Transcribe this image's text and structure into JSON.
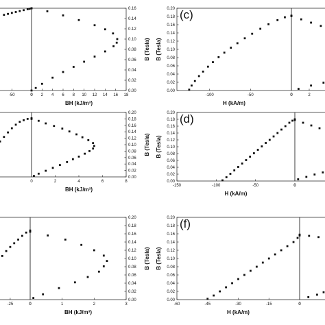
{
  "figure_type": "multi-panel demagnetization and energy product plots",
  "chart_data": [
    {
      "id": "a",
      "type": "scatter",
      "panel_label": "",
      "left_xticks": [
        "-50",
        "0"
      ],
      "right_xticks": [
        "0",
        "2",
        "4",
        "6",
        "8",
        "10",
        "12",
        "14",
        "16",
        "18"
      ],
      "right_xlabel": "BH (kJ/m³)",
      "ylabel": "B (Tesla)",
      "ylim": [
        0,
        0.16
      ],
      "yticks": [
        "0.00",
        "0.02",
        "0.04",
        "0.06",
        "0.08",
        "0.10",
        "0.12",
        "0.14",
        "0.16"
      ],
      "left_series": [
        [
          -100,
          0.1416
        ],
        [
          -85,
          0.1444
        ],
        [
          -70,
          0.1471
        ],
        [
          -60,
          0.149
        ],
        [
          -50,
          0.1509
        ],
        [
          -40,
          0.1527
        ],
        [
          -30,
          0.1545
        ],
        [
          -20,
          0.1563
        ],
        [
          -10,
          0.1581
        ],
        [
          -5,
          0.1589
        ],
        [
          0,
          0.1598
        ]
      ],
      "right_series": [
        [
          0,
          0.16
        ],
        [
          3,
          0.154
        ],
        [
          6,
          0.146
        ],
        [
          9,
          0.137
        ],
        [
          12,
          0.127
        ],
        [
          14,
          0.119
        ],
        [
          15.5,
          0.111
        ],
        [
          16.3,
          0.1
        ],
        [
          16.2,
          0.093
        ],
        [
          15.6,
          0.086
        ],
        [
          14,
          0.076
        ],
        [
          12,
          0.066
        ],
        [
          10,
          0.056
        ],
        [
          8,
          0.046
        ],
        [
          6,
          0.036
        ],
        [
          4,
          0.025
        ],
        [
          2,
          0.013
        ],
        [
          0.8,
          0.005
        ],
        [
          0,
          0
        ]
      ]
    },
    {
      "id": "b",
      "type": "scatter",
      "panel_label": "",
      "left_xticks": [],
      "right_xticks": [
        "0",
        "2",
        "4",
        "6",
        "8"
      ],
      "right_xlabel": "BH (kJ/m³)",
      "ylabel": "B (Tesla)",
      "ylim": [
        0,
        0.2
      ],
      "yticks": [
        "0.00",
        "0.02",
        "0.04",
        "0.06",
        "0.08",
        "0.10",
        "0.12",
        "0.14",
        "0.16",
        "0.18",
        "0.20"
      ],
      "left_series": [
        [
          -100,
          0.081
        ],
        [
          -90,
          0.095
        ],
        [
          -80,
          0.11
        ],
        [
          -70,
          0.124
        ],
        [
          -60,
          0.138
        ],
        [
          -50,
          0.151
        ],
        [
          -40,
          0.162
        ],
        [
          -30,
          0.171
        ],
        [
          -20,
          0.176
        ],
        [
          -10,
          0.18
        ],
        [
          0,
          0.182
        ]
      ],
      "right_series": [
        [
          0,
          0.18
        ],
        [
          0.6,
          0.174
        ],
        [
          1.2,
          0.166
        ],
        [
          1.9,
          0.158
        ],
        [
          2.6,
          0.15
        ],
        [
          3.2,
          0.141
        ],
        [
          3.8,
          0.132
        ],
        [
          4.3,
          0.123
        ],
        [
          4.8,
          0.114
        ],
        [
          5.2,
          0.105
        ],
        [
          5.3,
          0.096
        ],
        [
          5.2,
          0.088
        ],
        [
          4.9,
          0.08
        ],
        [
          4.5,
          0.072
        ],
        [
          4,
          0.063
        ],
        [
          3.5,
          0.055
        ],
        [
          3,
          0.046
        ],
        [
          2.4,
          0.037
        ],
        [
          1.8,
          0.028
        ],
        [
          1.2,
          0.019
        ],
        [
          0.6,
          0.01
        ],
        [
          0.2,
          0.003
        ]
      ]
    },
    {
      "id": "e",
      "type": "scatter",
      "panel_label": "",
      "left_xticks": [
        "-25",
        "0"
      ],
      "right_xticks": [
        "0",
        "1",
        "2",
        "3"
      ],
      "right_xlabel": "BH (kJ/m³)",
      "ylabel": "B (Tesla)",
      "ylim": [
        0,
        0.2
      ],
      "yticks": [
        "0.00",
        "0.02",
        "0.04",
        "0.06",
        "0.08",
        "0.10",
        "0.12",
        "0.14",
        "0.16",
        "0.18",
        "0.20"
      ],
      "left_series": [
        [
          -45,
          0.076
        ],
        [
          -40,
          0.092
        ],
        [
          -35,
          0.106
        ],
        [
          -30,
          0.118
        ],
        [
          -25,
          0.128
        ],
        [
          -20,
          0.137
        ],
        [
          -15,
          0.146
        ],
        [
          -10,
          0.155
        ],
        [
          -5,
          0.163
        ],
        [
          0,
          0.168
        ]
      ],
      "right_series": [
        [
          0,
          0.165
        ],
        [
          0.55,
          0.156
        ],
        [
          1.1,
          0.146
        ],
        [
          1.6,
          0.133
        ],
        [
          2,
          0.12
        ],
        [
          2.3,
          0.107
        ],
        [
          2.4,
          0.094
        ],
        [
          2.3,
          0.081
        ],
        [
          2.15,
          0.068
        ],
        [
          1.8,
          0.055
        ],
        [
          1.4,
          0.042
        ],
        [
          0.9,
          0.028
        ],
        [
          0.4,
          0.013
        ],
        [
          0.1,
          0.004
        ]
      ]
    },
    {
      "id": "c",
      "type": "scatter",
      "panel_label": "(c)",
      "left_xticks": [
        "-100",
        "-50",
        "0"
      ],
      "left_xlabel": "H (kA/m)",
      "right_xticks": [
        "0",
        "2",
        "4"
      ],
      "ylabel": "B (Tesla)",
      "ylim": [
        0,
        0.2
      ],
      "yticks": [
        "0.00",
        "0.02",
        "0.04",
        "0.06",
        "0.08",
        "0.10",
        "0.12",
        "0.14",
        "0.16",
        "0.18",
        "0.20"
      ],
      "left_series": [
        [
          -125,
          0.002
        ],
        [
          -122,
          0.012
        ],
        [
          -118,
          0.023
        ],
        [
          -113,
          0.035
        ],
        [
          -108,
          0.046
        ],
        [
          -102,
          0.058
        ],
        [
          -96,
          0.069
        ],
        [
          -89,
          0.081
        ],
        [
          -82,
          0.092
        ],
        [
          -74,
          0.104
        ],
        [
          -66,
          0.115
        ],
        [
          -57,
          0.127
        ],
        [
          -48,
          0.138
        ],
        [
          -38,
          0.15
        ],
        [
          -28,
          0.161
        ],
        [
          -17,
          0.171
        ],
        [
          -8,
          0.178
        ],
        [
          0,
          0.182
        ]
      ],
      "right_series": [
        [
          0,
          0.181
        ],
        [
          1.1,
          0.173
        ],
        [
          2.2,
          0.165
        ],
        [
          3.3,
          0.157
        ],
        [
          4.5,
          0.149
        ],
        [
          0.8,
          0.004
        ],
        [
          2.2,
          0.012
        ],
        [
          3.6,
          0.019
        ]
      ]
    },
    {
      "id": "d",
      "type": "scatter",
      "panel_label": "(d)",
      "left_xticks": [
        "-150",
        "-100",
        "-50",
        "0"
      ],
      "left_xlabel": "H (kA/m)",
      "right_xticks": [
        "0"
      ],
      "ylabel": "B (Tesla)",
      "ylim": [
        0,
        0.2
      ],
      "yticks": [
        "0.00",
        "0.02",
        "0.04",
        "0.06",
        "0.08",
        "0.10",
        "0.12",
        "0.14",
        "0.16",
        "0.18",
        "0.20"
      ],
      "left_series": [
        [
          -92,
          0.002
        ],
        [
          -87,
          0.011
        ],
        [
          -82,
          0.021
        ],
        [
          -77,
          0.031
        ],
        [
          -72,
          0.041
        ],
        [
          -67,
          0.051
        ],
        [
          -62,
          0.061
        ],
        [
          -57,
          0.071
        ],
        [
          -52,
          0.081
        ],
        [
          -47,
          0.091
        ],
        [
          -42,
          0.101
        ],
        [
          -37,
          0.111
        ],
        [
          -32,
          0.12
        ],
        [
          -27,
          0.13
        ],
        [
          -22,
          0.14
        ],
        [
          -17,
          0.15
        ],
        [
          -12,
          0.16
        ],
        [
          -7,
          0.17
        ],
        [
          -3,
          0.176
        ],
        [
          0,
          0.18
        ]
      ],
      "right_series": [
        [
          0,
          0.178
        ],
        [
          1,
          0.17
        ],
        [
          2,
          0.162
        ],
        [
          3,
          0.154
        ],
        [
          0.4,
          0.005
        ],
        [
          1.4,
          0.012
        ],
        [
          2.4,
          0.019
        ],
        [
          3.4,
          0.025
        ]
      ]
    },
    {
      "id": "f",
      "type": "scatter",
      "panel_label": "(f)",
      "left_xticks": [
        "-60",
        "-45",
        "-30",
        "-15",
        "0"
      ],
      "left_xlabel": "H (kA/m)",
      "right_xticks": [
        "0"
      ],
      "ylabel": "B (Tesla)",
      "ylim": [
        0,
        0.2
      ],
      "yticks": [
        "0.00",
        "0.02",
        "0.04",
        "0.06",
        "0.08",
        "0.10",
        "0.12",
        "0.14",
        "0.16",
        "0.18",
        "0.20"
      ],
      "left_series": [
        [
          -45,
          0.002
        ],
        [
          -42,
          0.01
        ],
        [
          -39,
          0.02
        ],
        [
          -36,
          0.03
        ],
        [
          -33,
          0.04
        ],
        [
          -30,
          0.05
        ],
        [
          -27,
          0.06
        ],
        [
          -24,
          0.07
        ],
        [
          -21,
          0.08
        ],
        [
          -18,
          0.09
        ],
        [
          -15,
          0.1
        ],
        [
          -12,
          0.11
        ],
        [
          -9,
          0.12
        ],
        [
          -6,
          0.13
        ],
        [
          -3,
          0.14
        ],
        [
          -1,
          0.15
        ],
        [
          0,
          0.156
        ]
      ],
      "right_series": [
        [
          0,
          0.158
        ],
        [
          1.3,
          0.155
        ],
        [
          2.6,
          0.152
        ],
        [
          3.9,
          0.149
        ],
        [
          1.2,
          0.006
        ],
        [
          2.4,
          0.012
        ],
        [
          3.3,
          0.018
        ]
      ]
    }
  ]
}
